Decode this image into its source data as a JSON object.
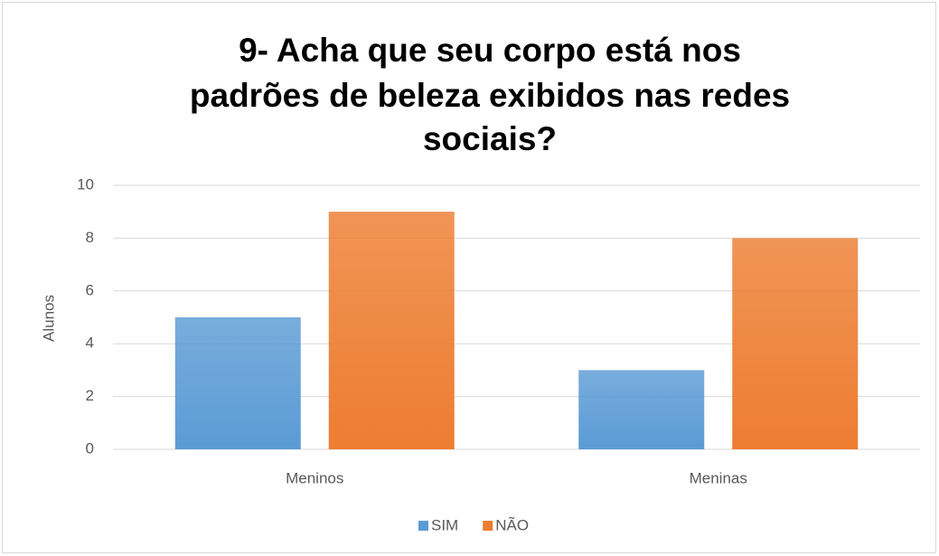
{
  "chart_data": {
    "type": "bar",
    "title": [
      "9- Acha que seu corpo está nos",
      "padrões de beleza exibidos nas redes",
      "sociais?"
    ],
    "y_label": "Alunos",
    "categories": [
      "Meninos",
      "Meninas"
    ],
    "series": [
      {
        "name": "SIM",
        "color": "#5b9bd5",
        "values": [
          5,
          3
        ]
      },
      {
        "name": "NÃO",
        "color": "#ed7d31",
        "values": [
          9,
          8
        ]
      }
    ],
    "ylim": [
      0,
      10
    ],
    "yticks": [
      0,
      2,
      4,
      6,
      8,
      10
    ],
    "grid": true,
    "legend": "bottom"
  }
}
